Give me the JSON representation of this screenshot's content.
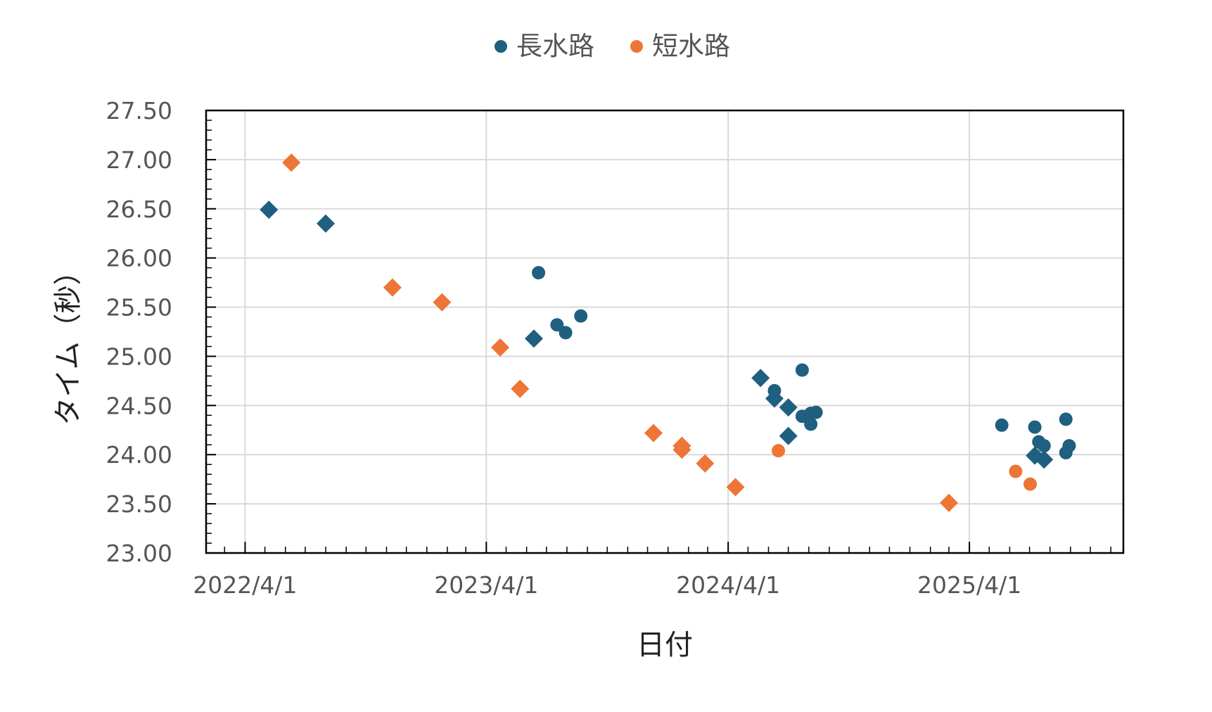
{
  "chart_data": {
    "type": "scatter",
    "xlabel": "日付",
    "ylabel": "タイム（秒）",
    "ylim": [
      23.0,
      27.5
    ],
    "xlim": [
      "2022-02-01",
      "2025-11-20"
    ],
    "ytick_step": 0.5,
    "y_minor_step": 0.1,
    "x_major_ticks": [
      "2022-04-01",
      "2023-04-01",
      "2024-04-01",
      "2025-04-01"
    ],
    "x_tick_labels": [
      "2022/4/1",
      "2023/4/1",
      "2024/4/1",
      "2025/4/1"
    ],
    "grid": true,
    "legend": {
      "position": "top",
      "entries": [
        {
          "name": "長水路",
          "color": "#1f5f7f",
          "marker": "circle"
        },
        {
          "name": "短水路",
          "color": "#ed7535",
          "marker": "circle"
        }
      ]
    },
    "series": [
      {
        "name": "長水路",
        "color": "#1f5f7f",
        "points": [
          {
            "date": "2022-05-07",
            "y": 26.49,
            "marker": "diamond"
          },
          {
            "date": "2022-08-01",
            "y": 26.35,
            "marker": "diamond"
          },
          {
            "date": "2023-06-12",
            "y": 25.18,
            "marker": "diamond"
          },
          {
            "date": "2023-06-19",
            "y": 25.85,
            "marker": "circle"
          },
          {
            "date": "2023-07-17",
            "y": 25.32,
            "marker": "circle"
          },
          {
            "date": "2023-07-30",
            "y": 25.24,
            "marker": "circle"
          },
          {
            "date": "2023-08-22",
            "y": 25.41,
            "marker": "circle"
          },
          {
            "date": "2024-05-20",
            "y": 24.78,
            "marker": "diamond"
          },
          {
            "date": "2024-06-10",
            "y": 24.65,
            "marker": "circle"
          },
          {
            "date": "2024-06-10",
            "y": 24.57,
            "marker": "diamond"
          },
          {
            "date": "2024-07-01",
            "y": 24.48,
            "marker": "diamond"
          },
          {
            "date": "2024-07-01",
            "y": 24.19,
            "marker": "diamond"
          },
          {
            "date": "2024-07-22",
            "y": 24.86,
            "marker": "circle"
          },
          {
            "date": "2024-07-22",
            "y": 24.39,
            "marker": "circle"
          },
          {
            "date": "2024-08-04",
            "y": 24.42,
            "marker": "circle"
          },
          {
            "date": "2024-08-04",
            "y": 24.31,
            "marker": "circle"
          },
          {
            "date": "2024-08-12",
            "y": 24.43,
            "marker": "circle"
          },
          {
            "date": "2025-05-20",
            "y": 24.3,
            "marker": "circle"
          },
          {
            "date": "2025-07-09",
            "y": 24.28,
            "marker": "circle"
          },
          {
            "date": "2025-07-09",
            "y": 23.99,
            "marker": "diamond"
          },
          {
            "date": "2025-07-15",
            "y": 24.13,
            "marker": "circle"
          },
          {
            "date": "2025-07-23",
            "y": 24.09,
            "marker": "circle"
          },
          {
            "date": "2025-07-23",
            "y": 23.95,
            "marker": "diamond"
          },
          {
            "date": "2025-08-25",
            "y": 24.36,
            "marker": "circle"
          },
          {
            "date": "2025-08-25",
            "y": 24.02,
            "marker": "circle"
          },
          {
            "date": "2025-08-30",
            "y": 24.09,
            "marker": "circle"
          }
        ]
      },
      {
        "name": "短水路",
        "color": "#ed7535",
        "points": [
          {
            "date": "2022-06-10",
            "y": 26.97,
            "marker": "diamond"
          },
          {
            "date": "2022-11-10",
            "y": 25.7,
            "marker": "diamond"
          },
          {
            "date": "2023-01-24",
            "y": 25.55,
            "marker": "diamond"
          },
          {
            "date": "2023-04-22",
            "y": 25.09,
            "marker": "diamond"
          },
          {
            "date": "2023-05-22",
            "y": 24.67,
            "marker": "diamond"
          },
          {
            "date": "2023-12-10",
            "y": 24.22,
            "marker": "diamond"
          },
          {
            "date": "2024-01-22",
            "y": 24.09,
            "marker": "diamond"
          },
          {
            "date": "2024-01-22",
            "y": 24.05,
            "marker": "diamond"
          },
          {
            "date": "2024-02-26",
            "y": 23.91,
            "marker": "diamond"
          },
          {
            "date": "2024-04-12",
            "y": 23.67,
            "marker": "diamond"
          },
          {
            "date": "2024-06-16",
            "y": 24.04,
            "marker": "circle"
          },
          {
            "date": "2025-03-01",
            "y": 23.51,
            "marker": "diamond"
          },
          {
            "date": "2025-06-10",
            "y": 23.83,
            "marker": "circle"
          },
          {
            "date": "2025-07-02",
            "y": 23.7,
            "marker": "circle"
          }
        ]
      }
    ]
  }
}
